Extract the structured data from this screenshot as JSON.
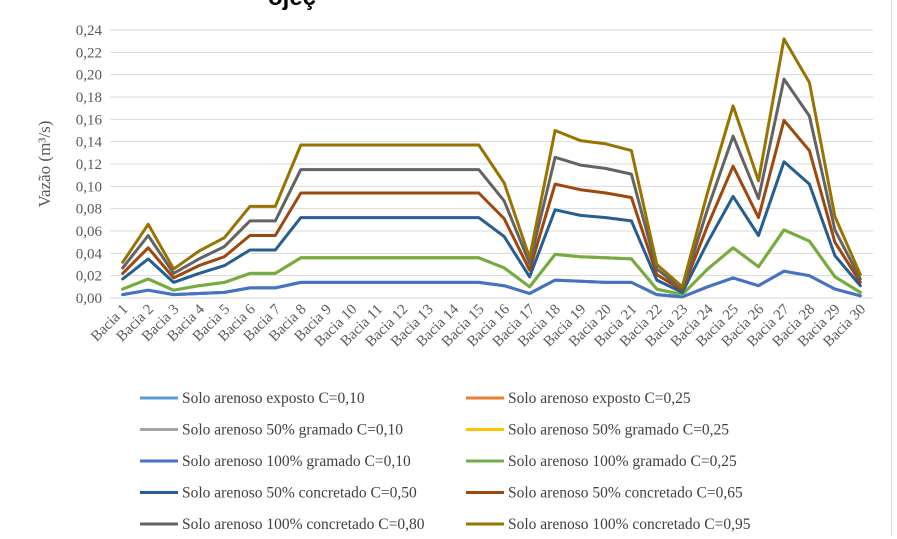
{
  "title_fragment": "ojeç",
  "chart_data": {
    "type": "line",
    "ylabel": "Vazão (m³/s)",
    "xlabel": "",
    "ylim": [
      0,
      0.24
    ],
    "yticks": [
      "0,00",
      "0,02",
      "0,04",
      "0,06",
      "0,08",
      "0,10",
      "0,12",
      "0,14",
      "0,16",
      "0,18",
      "0,20",
      "0,22",
      "0,24"
    ],
    "grid": "horizontal",
    "legend_position": "bottom",
    "categories": [
      "Bacia 1",
      "Bacia 2",
      "Bacia 3",
      "Bacia 4",
      "Bacia 5",
      "Bacia 6",
      "Bacia 7",
      "Bacia 8",
      "Bacia 9",
      "Bacia 10",
      "Bacia 11",
      "Bacia 12",
      "Bacia 13",
      "Bacia 14",
      "Bacia 15",
      "Bacia 16",
      "Bacia 17",
      "Bacia 18",
      "Bacia 19",
      "Bacia 20",
      "Bacia 21",
      "Bacia 22",
      "Bacia 23",
      "Bacia 24",
      "Bacia 25",
      "Bacia 26",
      "Bacia 27",
      "Bacia 28",
      "Bacia 29",
      "Bacia 30"
    ],
    "series": [
      {
        "name": "Solo arenoso exposto C=0,10",
        "color": "#5b9bd5",
        "values": [
          0.003,
          0.007,
          0.003,
          0.004,
          0.005,
          0.009,
          0.009,
          0.014,
          0.014,
          0.014,
          0.014,
          0.014,
          0.014,
          0.014,
          0.014,
          0.011,
          0.004,
          0.016,
          0.015,
          0.014,
          0.014,
          0.003,
          0.001,
          0.01,
          0.018,
          0.011,
          0.024,
          0.02,
          0.008,
          0.002
        ]
      },
      {
        "name": "Solo arenoso exposto C=0,25",
        "color": "#ed7d31",
        "values": [
          0.008,
          0.017,
          0.007,
          0.011,
          0.014,
          0.022,
          0.022,
          0.036,
          0.036,
          0.036,
          0.036,
          0.036,
          0.036,
          0.036,
          0.036,
          0.027,
          0.01,
          0.039,
          0.037,
          0.036,
          0.035,
          0.008,
          0.003,
          0.026,
          0.045,
          0.028,
          0.061,
          0.051,
          0.019,
          0.005
        ]
      },
      {
        "name": "Solo arenoso 50% gramado C=0,10",
        "color": "#a5a5a5",
        "values": [
          0.003,
          0.007,
          0.003,
          0.004,
          0.005,
          0.009,
          0.009,
          0.014,
          0.014,
          0.014,
          0.014,
          0.014,
          0.014,
          0.014,
          0.014,
          0.011,
          0.004,
          0.016,
          0.015,
          0.014,
          0.014,
          0.003,
          0.001,
          0.01,
          0.018,
          0.011,
          0.024,
          0.02,
          0.008,
          0.002
        ]
      },
      {
        "name": "Solo arenoso 50% gramado C=0,25",
        "color": "#ffc000",
        "values": [
          0.008,
          0.017,
          0.007,
          0.011,
          0.014,
          0.022,
          0.022,
          0.036,
          0.036,
          0.036,
          0.036,
          0.036,
          0.036,
          0.036,
          0.036,
          0.027,
          0.01,
          0.039,
          0.037,
          0.036,
          0.035,
          0.008,
          0.003,
          0.026,
          0.045,
          0.028,
          0.061,
          0.051,
          0.019,
          0.005
        ]
      },
      {
        "name": "Solo arenoso 100% gramado C=0,10",
        "color": "#4472c4",
        "values": [
          0.003,
          0.007,
          0.003,
          0.004,
          0.005,
          0.009,
          0.009,
          0.014,
          0.014,
          0.014,
          0.014,
          0.014,
          0.014,
          0.014,
          0.014,
          0.011,
          0.004,
          0.016,
          0.015,
          0.014,
          0.014,
          0.003,
          0.001,
          0.01,
          0.018,
          0.011,
          0.024,
          0.02,
          0.008,
          0.002
        ]
      },
      {
        "name": "Solo arenoso 100% gramado C=0,25",
        "color": "#70ad47",
        "values": [
          0.008,
          0.017,
          0.007,
          0.011,
          0.014,
          0.022,
          0.022,
          0.036,
          0.036,
          0.036,
          0.036,
          0.036,
          0.036,
          0.036,
          0.036,
          0.027,
          0.01,
          0.039,
          0.037,
          0.036,
          0.035,
          0.008,
          0.003,
          0.026,
          0.045,
          0.028,
          0.061,
          0.051,
          0.019,
          0.005
        ]
      },
      {
        "name": "Solo arenoso 50% concretado C=0,50",
        "color": "#255e91",
        "values": [
          0.017,
          0.035,
          0.014,
          0.022,
          0.029,
          0.043,
          0.043,
          0.072,
          0.072,
          0.072,
          0.072,
          0.072,
          0.072,
          0.072,
          0.072,
          0.055,
          0.019,
          0.079,
          0.074,
          0.072,
          0.069,
          0.016,
          0.005,
          0.05,
          0.091,
          0.056,
          0.122,
          0.102,
          0.038,
          0.011
        ]
      },
      {
        "name": "Solo arenoso 50% concretado C=0,65",
        "color": "#9e480e",
        "values": [
          0.022,
          0.045,
          0.018,
          0.029,
          0.037,
          0.056,
          0.056,
          0.094,
          0.094,
          0.094,
          0.094,
          0.094,
          0.094,
          0.094,
          0.094,
          0.071,
          0.025,
          0.102,
          0.097,
          0.094,
          0.09,
          0.021,
          0.007,
          0.065,
          0.118,
          0.072,
          0.159,
          0.132,
          0.05,
          0.014
        ]
      },
      {
        "name": "Solo arenoso 100% concretado C=0,80",
        "color": "#636363",
        "values": [
          0.027,
          0.056,
          0.022,
          0.035,
          0.046,
          0.069,
          0.069,
          0.115,
          0.115,
          0.115,
          0.115,
          0.115,
          0.115,
          0.115,
          0.115,
          0.087,
          0.031,
          0.126,
          0.119,
          0.116,
          0.111,
          0.026,
          0.008,
          0.08,
          0.145,
          0.089,
          0.196,
          0.163,
          0.061,
          0.017
        ]
      },
      {
        "name": "Solo arenoso 100% concretado C=0,95",
        "color": "#997300",
        "values": [
          0.032,
          0.066,
          0.026,
          0.042,
          0.054,
          0.082,
          0.082,
          0.137,
          0.137,
          0.137,
          0.137,
          0.137,
          0.137,
          0.137,
          0.137,
          0.103,
          0.036,
          0.15,
          0.141,
          0.138,
          0.132,
          0.03,
          0.01,
          0.095,
          0.172,
          0.105,
          0.232,
          0.193,
          0.073,
          0.021
        ]
      }
    ]
  }
}
